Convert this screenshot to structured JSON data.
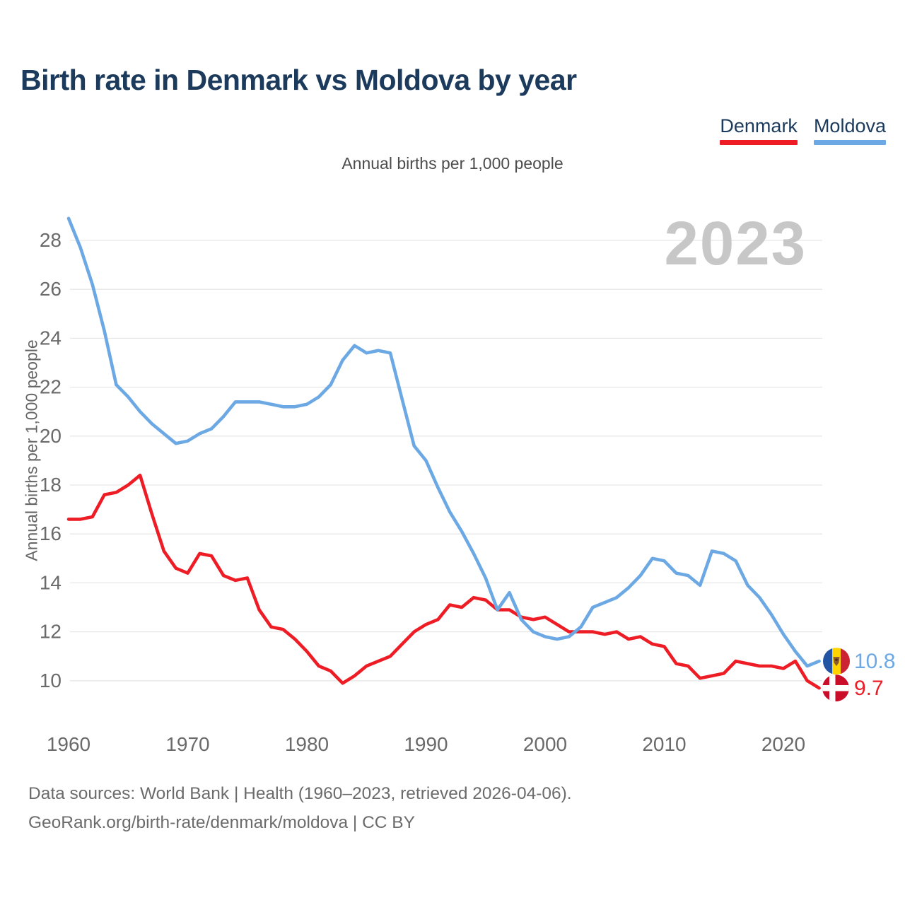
{
  "title": "Birth rate in Denmark vs Moldova by year",
  "subtitle": "Annual births per 1,000 people",
  "y_axis_title": "Annual births per 1,000 people",
  "watermark": "2023",
  "legend": {
    "items": [
      {
        "label": "Denmark",
        "color": "#ee1c25"
      },
      {
        "label": "Moldova",
        "color": "#6ca9e4"
      }
    ]
  },
  "end_labels": {
    "moldova": {
      "value": "10.8",
      "flag": "moldova-flag",
      "color": "#6ca9e4"
    },
    "denmark": {
      "value": "9.7",
      "flag": "denmark-flag",
      "color": "#ee1c25"
    }
  },
  "footer": {
    "line1": "Data sources: World Bank | Health (1960–2023, retrieved 2026-04-06).",
    "line2": "GeoRank.org/birth-rate/denmark/moldova | CC BY"
  },
  "chart_data": {
    "type": "line",
    "title": "Birth rate in Denmark vs Moldova by year",
    "ylabel": "Annual births per 1,000 people",
    "xlabel": "",
    "grid": "horizontal",
    "legend_position": "top-right",
    "xticks": [
      1960,
      1970,
      1980,
      1990,
      2000,
      2010,
      2020
    ],
    "yticks": [
      10,
      12,
      14,
      16,
      18,
      20,
      22,
      24,
      26,
      28
    ],
    "ylim": [
      9.2,
      29.5
    ],
    "years": [
      1960,
      1961,
      1962,
      1963,
      1964,
      1965,
      1966,
      1967,
      1968,
      1969,
      1970,
      1971,
      1972,
      1973,
      1974,
      1975,
      1976,
      1977,
      1978,
      1979,
      1980,
      1981,
      1982,
      1983,
      1984,
      1985,
      1986,
      1987,
      1988,
      1989,
      1990,
      1991,
      1992,
      1993,
      1994,
      1995,
      1996,
      1997,
      1998,
      1999,
      2000,
      2001,
      2002,
      2003,
      2004,
      2005,
      2006,
      2007,
      2008,
      2009,
      2010,
      2011,
      2012,
      2013,
      2014,
      2015,
      2016,
      2017,
      2018,
      2019,
      2020,
      2021,
      2022,
      2023
    ],
    "series": [
      {
        "name": "Denmark",
        "color": "#ee1c25",
        "values": [
          16.6,
          16.6,
          16.7,
          17.6,
          17.7,
          18.0,
          18.4,
          16.8,
          15.3,
          14.6,
          14.4,
          15.2,
          15.1,
          14.3,
          14.1,
          14.2,
          12.9,
          12.2,
          12.1,
          11.7,
          11.2,
          10.6,
          10.4,
          9.9,
          10.2,
          10.6,
          10.8,
          11.0,
          11.5,
          12.0,
          12.3,
          12.5,
          13.1,
          13.0,
          13.4,
          13.3,
          12.9,
          12.9,
          12.6,
          12.5,
          12.6,
          12.3,
          12.0,
          12.0,
          12.0,
          11.9,
          12.0,
          11.7,
          11.8,
          11.5,
          11.4,
          10.7,
          10.6,
          10.1,
          10.2,
          10.3,
          10.8,
          10.7,
          10.6,
          10.6,
          10.5,
          10.8,
          10.0,
          9.7
        ]
      },
      {
        "name": "Moldova",
        "color": "#6ca9e4",
        "values": [
          28.9,
          27.7,
          26.2,
          24.3,
          22.1,
          21.6,
          21.0,
          20.5,
          20.1,
          19.7,
          19.8,
          20.1,
          20.3,
          20.8,
          21.4,
          21.4,
          21.4,
          21.3,
          21.2,
          21.2,
          21.3,
          21.6,
          22.1,
          23.1,
          23.7,
          23.4,
          23.5,
          23.4,
          21.5,
          19.6,
          19.0,
          17.9,
          16.9,
          16.1,
          15.2,
          14.2,
          12.9,
          13.6,
          12.5,
          12.0,
          11.8,
          11.7,
          11.8,
          12.2,
          13.0,
          13.2,
          13.4,
          13.8,
          14.3,
          15.0,
          14.9,
          14.4,
          14.3,
          13.9,
          15.3,
          15.2,
          14.9,
          13.9,
          13.4,
          12.7,
          11.9,
          11.2,
          10.6,
          10.8
        ]
      }
    ]
  },
  "colors": {
    "title": "#1b3a5c",
    "gridline": "#e7e7e7",
    "tick_label": "#6a6a6a",
    "watermark": "#c7c7c7"
  }
}
